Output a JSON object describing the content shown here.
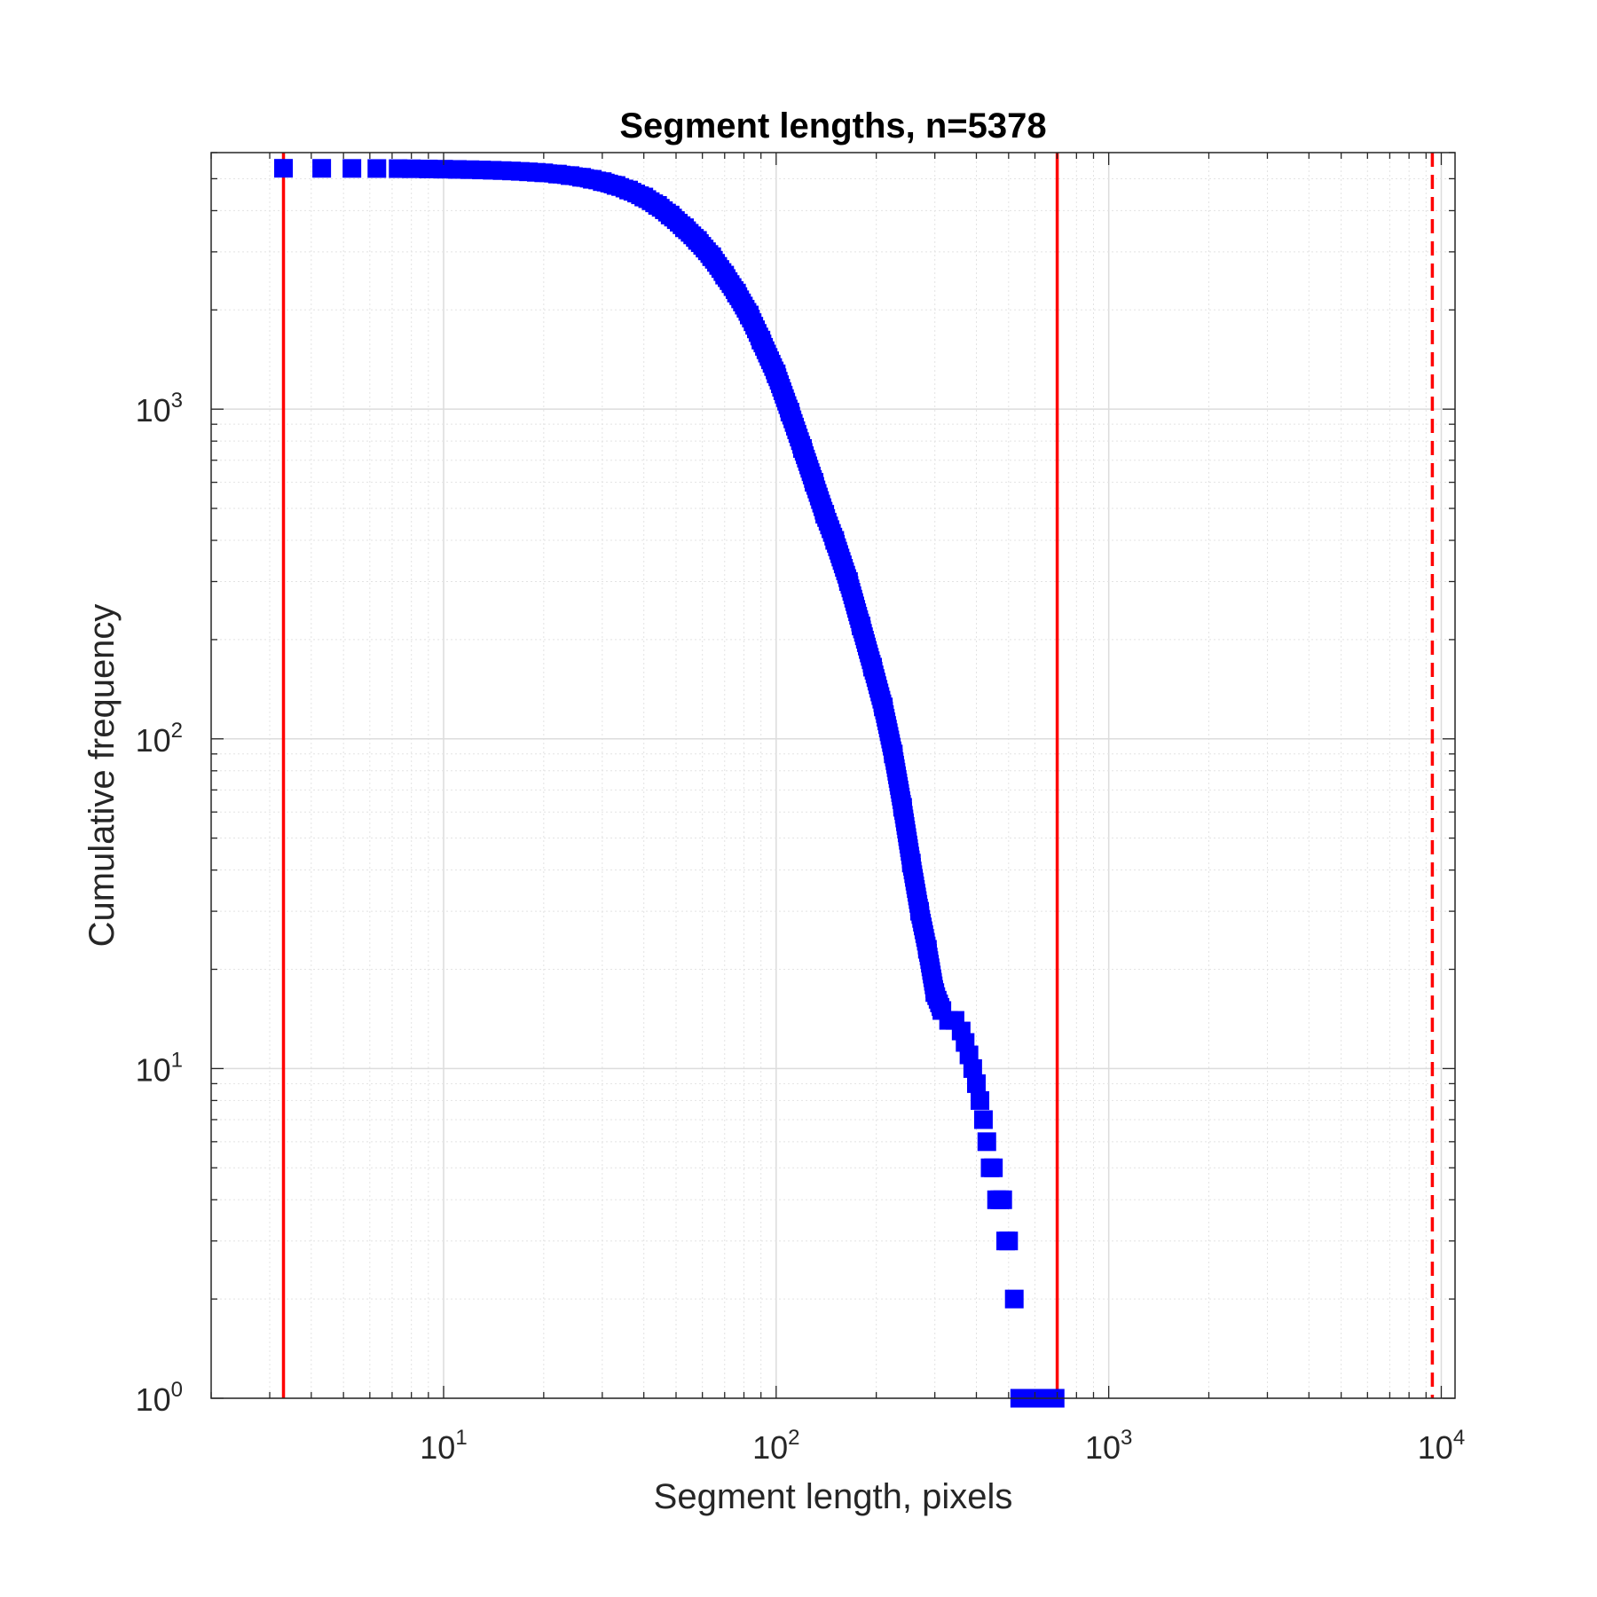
{
  "chart_data": {
    "type": "scatter",
    "title": "Segment lengths, n=5378",
    "xlabel": "Segment length, pixels",
    "ylabel": "Cumulative frequency",
    "xscale": "log",
    "yscale": "log",
    "xlim": [
      2,
      11000
    ],
    "ylim": [
      1,
      6000
    ],
    "grid": true,
    "x_ticks": [
      {
        "base": "10",
        "exp": "1",
        "value": 10
      },
      {
        "base": "10",
        "exp": "2",
        "value": 100
      },
      {
        "base": "10",
        "exp": "3",
        "value": 1000
      },
      {
        "base": "10",
        "exp": "4",
        "value": 10000
      }
    ],
    "y_ticks": [
      {
        "base": "10",
        "exp": "0",
        "value": 1
      },
      {
        "base": "10",
        "exp": "1",
        "value": 10
      },
      {
        "base": "10",
        "exp": "2",
        "value": 100
      },
      {
        "base": "10",
        "exp": "3",
        "value": 1000
      }
    ],
    "marker_color": "#0000ff",
    "series": [
      {
        "marker": "square",
        "x": [
          3.3,
          4.3,
          5.3,
          6.3,
          7.3,
          8,
          9,
          10,
          11,
          12,
          13,
          14,
          15,
          16,
          17,
          18,
          19,
          20,
          22,
          24,
          26,
          28,
          30,
          33,
          36,
          40,
          44,
          48,
          53,
          58,
          64,
          70,
          76,
          83,
          90,
          100,
          110,
          120,
          130,
          140,
          150,
          165,
          180,
          195,
          210,
          225,
          240,
          255,
          270,
          285,
          300,
          315,
          330,
          345,
          360,
          370,
          380,
          390,
          400,
          410,
          420,
          430,
          440,
          450,
          460,
          470,
          480,
          490,
          500,
          520,
          540,
          560,
          580,
          600,
          630,
          660,
          690
        ],
        "y": [
          5378,
          5375,
          5372,
          5369,
          5365,
          5360,
          5352,
          5344,
          5335,
          5326,
          5315,
          5304,
          5292,
          5278,
          5263,
          5246,
          5228,
          5210,
          5165,
          5110,
          5050,
          4980,
          4900,
          4770,
          4620,
          4400,
          4150,
          3880,
          3550,
          3250,
          2900,
          2550,
          2250,
          1930,
          1620,
          1280,
          980,
          760,
          600,
          480,
          400,
          300,
          220,
          165,
          125,
          90,
          62,
          42,
          30,
          23,
          17,
          15,
          14,
          14,
          13,
          12,
          11,
          10,
          9,
          8,
          7,
          6,
          5,
          5,
          4,
          4,
          4,
          3,
          3,
          2,
          1,
          1,
          1,
          1,
          1,
          1,
          1
        ]
      }
    ],
    "reference_lines": [
      {
        "x": 3.3,
        "style": "solid",
        "color": "#ff0000"
      },
      {
        "x": 700,
        "style": "solid",
        "color": "#ff0000"
      },
      {
        "x": 9400,
        "style": "dashed",
        "color": "#ff0000"
      }
    ]
  }
}
